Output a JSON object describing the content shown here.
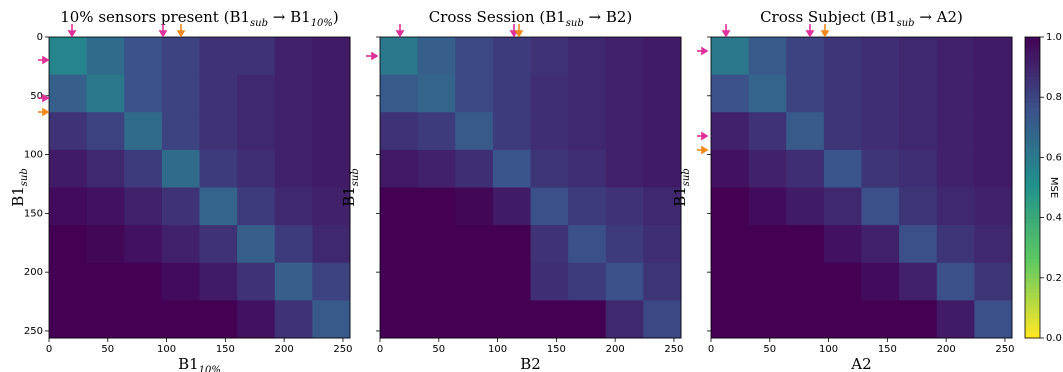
{
  "chart_data": [
    {
      "type": "heatmap",
      "title_parts": [
        "10% sensors present (B1",
        "sub",
        " → B1",
        "10%",
        ")"
      ],
      "xlabel_parts": [
        "B1",
        "10%"
      ],
      "ylabel_parts": [
        "B1",
        "sub"
      ],
      "xlim": [
        0,
        256
      ],
      "ylim": [
        0,
        256
      ],
      "xticks": [
        0,
        50,
        100,
        150,
        200,
        250
      ],
      "yticks": [
        0,
        50,
        100,
        150,
        200,
        250
      ],
      "ytick_labels": true,
      "colormap": "viridis_r",
      "clim": [
        0,
        1
      ],
      "matrix": [
        [
          0.55,
          0.65,
          0.75,
          0.8,
          0.85,
          0.85,
          0.9,
          0.92
        ],
        [
          0.7,
          0.6,
          0.75,
          0.8,
          0.85,
          0.88,
          0.9,
          0.92
        ],
        [
          0.85,
          0.8,
          0.65,
          0.8,
          0.85,
          0.88,
          0.9,
          0.92
        ],
        [
          0.92,
          0.88,
          0.82,
          0.65,
          0.82,
          0.86,
          0.9,
          0.92
        ],
        [
          0.97,
          0.95,
          0.9,
          0.85,
          0.68,
          0.82,
          0.88,
          0.9
        ],
        [
          1,
          0.98,
          0.95,
          0.9,
          0.85,
          0.7,
          0.82,
          0.88
        ],
        [
          1,
          1,
          1,
          0.97,
          0.92,
          0.85,
          0.7,
          0.8
        ],
        [
          1,
          1,
          1,
          1,
          1,
          0.95,
          0.85,
          0.72
        ]
      ]
    },
    {
      "type": "heatmap",
      "title_parts": [
        "Cross Session (B1",
        "sub",
        " → B2)"
      ],
      "xlabel_parts": [
        "B2"
      ],
      "ylabel_parts": [
        "B1",
        "sub"
      ],
      "xlim": [
        0,
        256
      ],
      "ylim": [
        0,
        256
      ],
      "xticks": [
        0,
        50,
        100,
        150,
        200,
        250
      ],
      "yticks": [
        0,
        50,
        100,
        150,
        200,
        250
      ],
      "ytick_labels": false,
      "colormap": "viridis_r",
      "clim": [
        0,
        1
      ],
      "matrix": [
        [
          0.6,
          0.7,
          0.78,
          0.82,
          0.85,
          0.88,
          0.9,
          0.92
        ],
        [
          0.72,
          0.68,
          0.78,
          0.82,
          0.86,
          0.88,
          0.9,
          0.92
        ],
        [
          0.85,
          0.82,
          0.72,
          0.82,
          0.86,
          0.88,
          0.9,
          0.92
        ],
        [
          0.93,
          0.9,
          0.86,
          0.74,
          0.84,
          0.86,
          0.9,
          0.92
        ],
        [
          1,
          1,
          0.98,
          0.92,
          0.76,
          0.82,
          0.85,
          0.88
        ],
        [
          1,
          1,
          1,
          1,
          0.85,
          0.76,
          0.82,
          0.86
        ],
        [
          1,
          1,
          1,
          1,
          0.86,
          0.82,
          0.76,
          0.84
        ],
        [
          1,
          1,
          1,
          1,
          1,
          1,
          0.88,
          0.78
        ]
      ]
    },
    {
      "type": "heatmap",
      "title_parts": [
        "Cross Subject (B1",
        "sub",
        " → A2)"
      ],
      "xlabel_parts": [
        "A2"
      ],
      "ylabel_parts": [
        "B1",
        "sub"
      ],
      "xlim": [
        0,
        256
      ],
      "ylim": [
        0,
        256
      ],
      "xticks": [
        0,
        50,
        100,
        150,
        200,
        250
      ],
      "yticks": [
        0,
        50,
        100,
        150,
        200,
        250
      ],
      "ytick_labels": false,
      "colormap": "viridis_r",
      "clim": [
        0,
        1
      ],
      "matrix": [
        [
          0.6,
          0.72,
          0.8,
          0.84,
          0.86,
          0.88,
          0.9,
          0.92
        ],
        [
          0.75,
          0.68,
          0.8,
          0.84,
          0.86,
          0.88,
          0.9,
          0.92
        ],
        [
          0.9,
          0.85,
          0.72,
          0.84,
          0.86,
          0.88,
          0.9,
          0.92
        ],
        [
          0.95,
          0.9,
          0.86,
          0.74,
          0.84,
          0.86,
          0.9,
          0.92
        ],
        [
          1,
          0.97,
          0.92,
          0.88,
          0.76,
          0.84,
          0.88,
          0.9
        ],
        [
          1,
          1,
          1,
          0.95,
          0.9,
          0.76,
          0.84,
          0.88
        ],
        [
          1,
          1,
          1,
          1,
          0.97,
          0.9,
          0.76,
          0.84
        ],
        [
          1,
          1,
          1,
          1,
          1,
          1,
          0.92,
          0.76
        ]
      ],
      "colorbar": {
        "label": "MSE",
        "lim": [
          0,
          1
        ],
        "ticks": [
          {
            "value": 0,
            "label": "0.0"
          },
          {
            "value": 0.2,
            "label": "0.2"
          },
          {
            "value": 0.4,
            "label": "0.4"
          },
          {
            "value": 0.6,
            "label": "0.6"
          },
          {
            "value": 0.8,
            "label": "0.8"
          },
          {
            "value": 1,
            "label": "1.0"
          }
        ]
      }
    }
  ]
}
